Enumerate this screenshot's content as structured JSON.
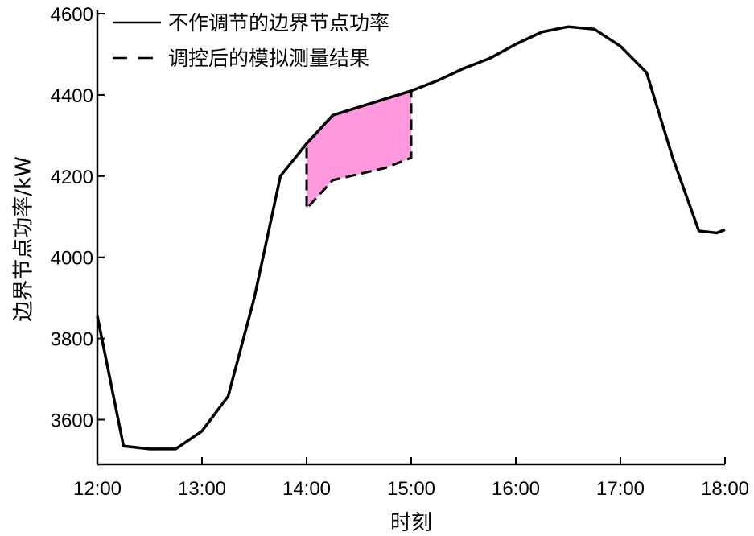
{
  "chart_data": {
    "type": "line",
    "xlabel": "时刻",
    "ylabel": "边界节点功率/kW",
    "x_ticks": [
      "12:00",
      "13:00",
      "14:00",
      "15:00",
      "16:00",
      "17:00",
      "18:00"
    ],
    "y_ticks": [
      3600,
      3800,
      4000,
      4200,
      4400,
      4600
    ],
    "xlim": [
      12.0,
      18.0
    ],
    "ylim": [
      3490,
      4610
    ],
    "grid": false,
    "legend_position": "top-left",
    "colors": {
      "line": "#000000",
      "fill": "#ff99dd"
    },
    "series": [
      {
        "name": "不作调节的边界节点功率",
        "style": "solid",
        "x": [
          12.0,
          12.25,
          12.5,
          12.75,
          13.0,
          13.25,
          13.5,
          13.75,
          14.0,
          14.25,
          14.5,
          14.75,
          15.0,
          15.25,
          15.5,
          15.75,
          16.0,
          16.25,
          16.5,
          16.75,
          17.0,
          17.25,
          17.5,
          17.75,
          17.92,
          18.0
        ],
        "y": [
          3855,
          3535,
          3528,
          3528,
          3572,
          3658,
          3900,
          4200,
          4280,
          4350,
          4370,
          4390,
          4410,
          4435,
          4465,
          4490,
          4525,
          4555,
          4568,
          4562,
          4520,
          4455,
          4245,
          4065,
          4060,
          4068
        ]
      },
      {
        "name": "调控后的模拟测量结果",
        "style": "dashed",
        "x": [
          14.0,
          14.0,
          14.25,
          14.5,
          14.75,
          15.0,
          15.0
        ],
        "y": [
          4270,
          4120,
          4190,
          4205,
          4220,
          4245,
          4410
        ]
      }
    ],
    "shaded_region": {
      "x_from": 14.0,
      "x_to": 15.0,
      "color": "#ff99dd"
    }
  }
}
